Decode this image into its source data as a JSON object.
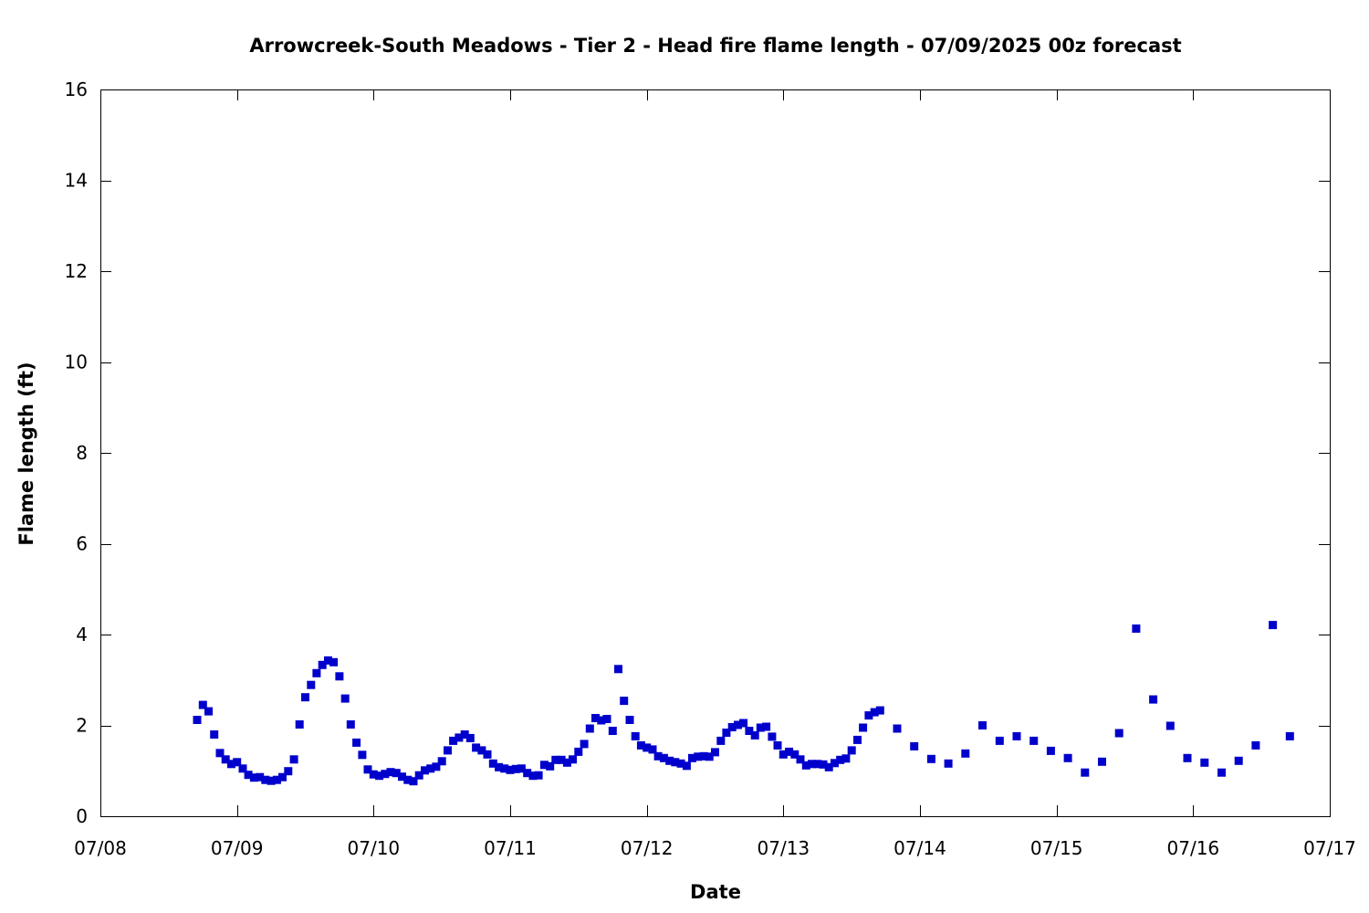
{
  "chart_data": {
    "type": "scatter",
    "title": "Arrowcreek-South Meadows - Tier 2 - Head fire flame length - 07/09/2025 00z forecast",
    "xlabel": "Date",
    "ylabel": "Flame length (ft)",
    "x_tick_labels": [
      "07/08",
      "07/09",
      "07/10",
      "07/11",
      "07/12",
      "07/13",
      "07/14",
      "07/15",
      "07/16",
      "07/17"
    ],
    "y_tick_labels": [
      "0",
      "2",
      "4",
      "6",
      "8",
      "10",
      "12",
      "14",
      "16"
    ],
    "xlim_days": [
      0,
      9
    ],
    "ylim": [
      0,
      16
    ],
    "grid": false,
    "legend": "none",
    "marker_color": "#0000cc",
    "points": [
      [
        0.708,
        2.12
      ],
      [
        0.75,
        2.45
      ],
      [
        0.792,
        2.31
      ],
      [
        0.833,
        1.8
      ],
      [
        0.875,
        1.39
      ],
      [
        0.917,
        1.25
      ],
      [
        0.958,
        1.15
      ],
      [
        1.0,
        1.19
      ],
      [
        1.042,
        1.05
      ],
      [
        1.083,
        0.91
      ],
      [
        1.125,
        0.85
      ],
      [
        1.167,
        0.86
      ],
      [
        1.208,
        0.8
      ],
      [
        1.25,
        0.78
      ],
      [
        1.292,
        0.8
      ],
      [
        1.333,
        0.86
      ],
      [
        1.375,
        0.99
      ],
      [
        1.417,
        1.25
      ],
      [
        1.458,
        2.02
      ],
      [
        1.5,
        2.62
      ],
      [
        1.542,
        2.89
      ],
      [
        1.583,
        3.15
      ],
      [
        1.625,
        3.33
      ],
      [
        1.667,
        3.43
      ],
      [
        1.708,
        3.39
      ],
      [
        1.75,
        3.08
      ],
      [
        1.792,
        2.59
      ],
      [
        1.833,
        2.02
      ],
      [
        1.875,
        1.62
      ],
      [
        1.917,
        1.35
      ],
      [
        1.958,
        1.03
      ],
      [
        2.0,
        0.92
      ],
      [
        2.042,
        0.89
      ],
      [
        2.083,
        0.93
      ],
      [
        2.125,
        0.97
      ],
      [
        2.167,
        0.95
      ],
      [
        2.208,
        0.87
      ],
      [
        2.25,
        0.8
      ],
      [
        2.292,
        0.77
      ],
      [
        2.333,
        0.9
      ],
      [
        2.375,
        1.01
      ],
      [
        2.417,
        1.05
      ],
      [
        2.458,
        1.09
      ],
      [
        2.5,
        1.21
      ],
      [
        2.542,
        1.45
      ],
      [
        2.583,
        1.66
      ],
      [
        2.625,
        1.73
      ],
      [
        2.667,
        1.8
      ],
      [
        2.708,
        1.72
      ],
      [
        2.75,
        1.51
      ],
      [
        2.792,
        1.45
      ],
      [
        2.833,
        1.36
      ],
      [
        2.875,
        1.16
      ],
      [
        2.917,
        1.08
      ],
      [
        2.958,
        1.05
      ],
      [
        3.0,
        1.02
      ],
      [
        3.042,
        1.04
      ],
      [
        3.083,
        1.05
      ],
      [
        3.125,
        0.95
      ],
      [
        3.167,
        0.89
      ],
      [
        3.208,
        0.9
      ],
      [
        3.25,
        1.13
      ],
      [
        3.292,
        1.1
      ],
      [
        3.333,
        1.24
      ],
      [
        3.375,
        1.24
      ],
      [
        3.417,
        1.18
      ],
      [
        3.458,
        1.25
      ],
      [
        3.5,
        1.42
      ],
      [
        3.542,
        1.59
      ],
      [
        3.583,
        1.93
      ],
      [
        3.625,
        2.16
      ],
      [
        3.667,
        2.11
      ],
      [
        3.708,
        2.14
      ],
      [
        3.75,
        1.88
      ],
      [
        3.792,
        3.24
      ],
      [
        3.833,
        2.54
      ],
      [
        3.875,
        2.12
      ],
      [
        3.917,
        1.76
      ],
      [
        3.958,
        1.56
      ],
      [
        4.0,
        1.51
      ],
      [
        4.042,
        1.47
      ],
      [
        4.083,
        1.32
      ],
      [
        4.125,
        1.28
      ],
      [
        4.167,
        1.22
      ],
      [
        4.208,
        1.19
      ],
      [
        4.25,
        1.16
      ],
      [
        4.292,
        1.11
      ],
      [
        4.333,
        1.28
      ],
      [
        4.375,
        1.31
      ],
      [
        4.417,
        1.32
      ],
      [
        4.458,
        1.31
      ],
      [
        4.5,
        1.41
      ],
      [
        4.542,
        1.66
      ],
      [
        4.583,
        1.84
      ],
      [
        4.625,
        1.96
      ],
      [
        4.667,
        2.01
      ],
      [
        4.708,
        2.05
      ],
      [
        4.75,
        1.88
      ],
      [
        4.792,
        1.78
      ],
      [
        4.833,
        1.95
      ],
      [
        4.875,
        1.97
      ],
      [
        4.917,
        1.75
      ],
      [
        4.958,
        1.56
      ],
      [
        5.0,
        1.36
      ],
      [
        5.042,
        1.42
      ],
      [
        5.083,
        1.36
      ],
      [
        5.125,
        1.25
      ],
      [
        5.167,
        1.12
      ],
      [
        5.208,
        1.15
      ],
      [
        5.25,
        1.15
      ],
      [
        5.292,
        1.14
      ],
      [
        5.333,
        1.08
      ],
      [
        5.375,
        1.17
      ],
      [
        5.417,
        1.24
      ],
      [
        5.458,
        1.27
      ],
      [
        5.5,
        1.45
      ],
      [
        5.542,
        1.68
      ],
      [
        5.583,
        1.95
      ],
      [
        5.625,
        2.22
      ],
      [
        5.667,
        2.29
      ],
      [
        5.708,
        2.33
      ],
      [
        5.833,
        1.93
      ],
      [
        5.958,
        1.54
      ],
      [
        6.083,
        1.26
      ],
      [
        6.208,
        1.16
      ],
      [
        6.333,
        1.38
      ],
      [
        6.458,
        2.0
      ],
      [
        6.583,
        1.66
      ],
      [
        6.708,
        1.76
      ],
      [
        6.833,
        1.66
      ],
      [
        6.958,
        1.44
      ],
      [
        7.083,
        1.28
      ],
      [
        7.208,
        0.96
      ],
      [
        7.333,
        1.2
      ],
      [
        7.458,
        1.83
      ],
      [
        7.583,
        4.13
      ],
      [
        7.708,
        2.57
      ],
      [
        7.833,
        1.99
      ],
      [
        7.958,
        1.28
      ],
      [
        8.083,
        1.18
      ],
      [
        8.208,
        0.96
      ],
      [
        8.333,
        1.22
      ],
      [
        8.458,
        1.56
      ],
      [
        8.583,
        4.21
      ],
      [
        8.708,
        1.76
      ]
    ]
  }
}
